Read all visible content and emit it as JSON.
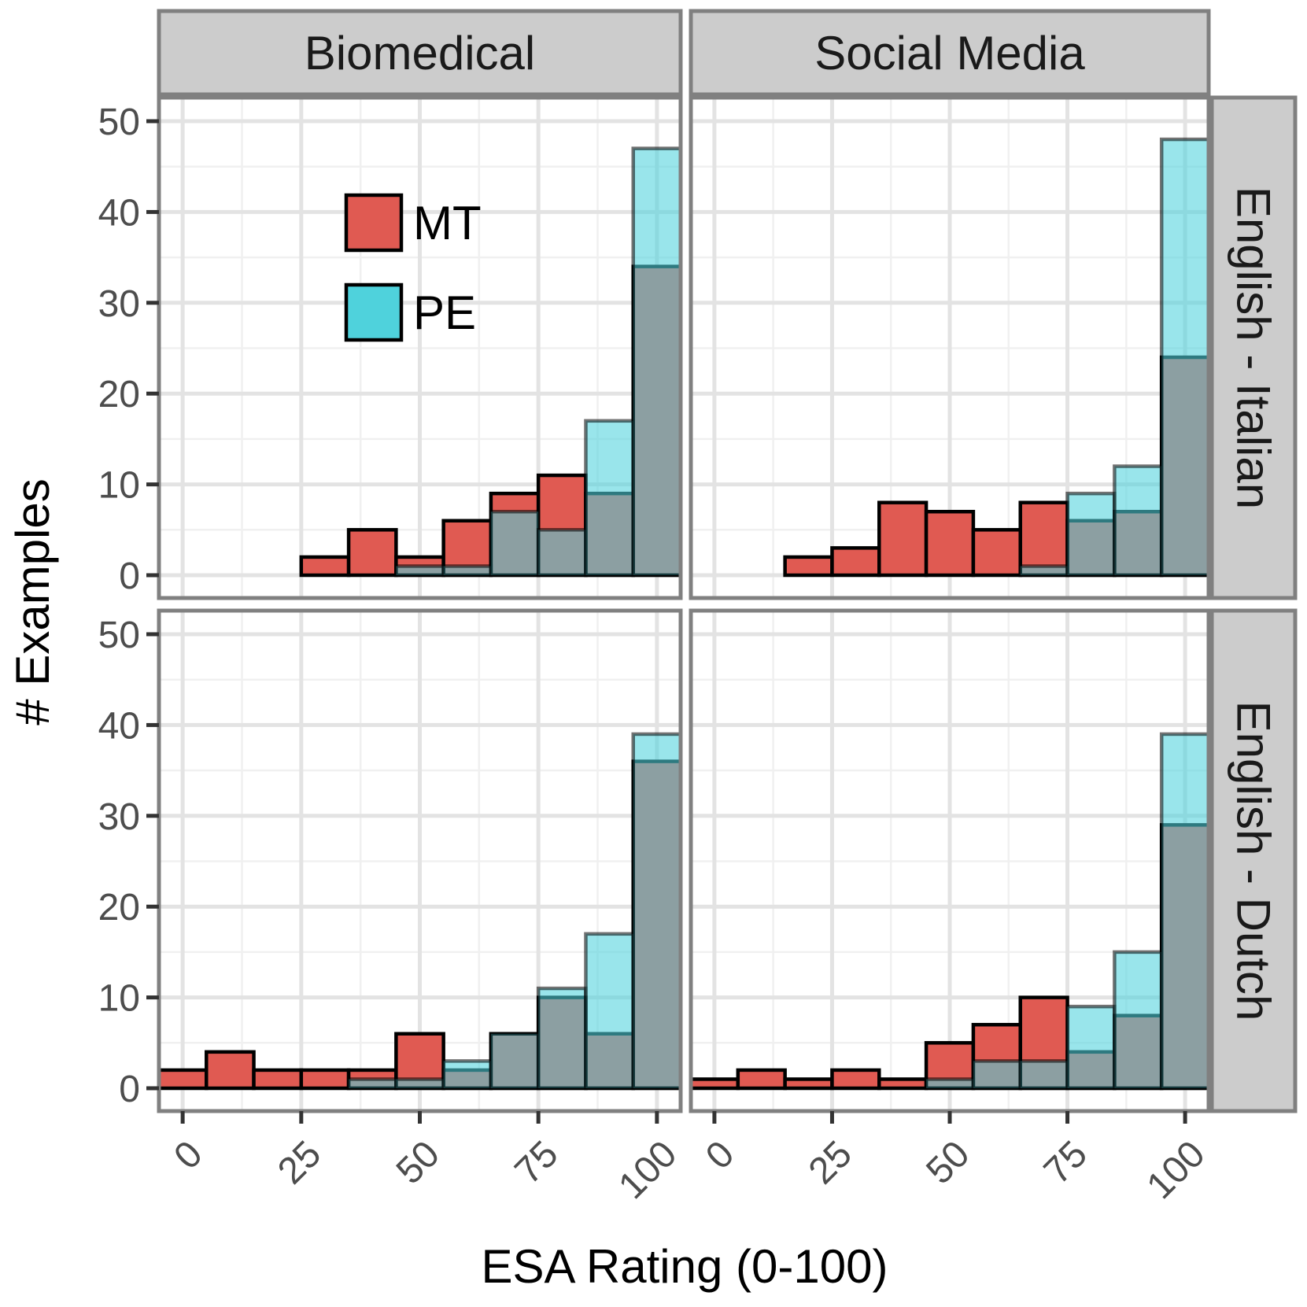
{
  "chart_data": {
    "type": "bar",
    "subtype": "faceted overlapping histogram",
    "xlabel": "ESA Rating (0-100)",
    "ylabel": "# Examples",
    "xlim": [
      -5,
      105
    ],
    "ylim": [
      0,
      50
    ],
    "x_ticks": [
      0,
      25,
      50,
      75,
      100
    ],
    "y_ticks": [
      0,
      10,
      20,
      30,
      40,
      50
    ],
    "bins": [
      0,
      10,
      20,
      30,
      40,
      50,
      60,
      70,
      80,
      90,
      100
    ],
    "bin_width": 10,
    "grid": true,
    "legend_placement": "inside top-left",
    "column_facets": [
      "Biomedical",
      "Social Media"
    ],
    "row_facets": [
      "English - Italian",
      "English - Dutch"
    ],
    "series": [
      {
        "name": "MT",
        "color": "#e05a52"
      },
      {
        "name": "PE",
        "color": "#4fd2dc"
      }
    ],
    "panels": [
      {
        "col": "Biomedical",
        "row": "English - Italian",
        "MT": [
          0,
          0,
          0,
          2,
          5,
          2,
          6,
          9,
          11,
          9,
          34
        ],
        "PE": [
          0,
          0,
          0,
          0,
          0,
          1,
          1,
          7,
          5,
          17,
          47
        ]
      },
      {
        "col": "Social Media",
        "row": "English - Italian",
        "MT": [
          0,
          0,
          2,
          3,
          8,
          7,
          5,
          8,
          6,
          7,
          24
        ],
        "PE": [
          0,
          0,
          0,
          0,
          0,
          0,
          0,
          1,
          9,
          12,
          48
        ]
      },
      {
        "col": "Biomedical",
        "row": "English - Dutch",
        "MT": [
          2,
          4,
          2,
          2,
          2,
          6,
          2,
          6,
          10,
          6,
          36
        ],
        "PE": [
          0,
          0,
          0,
          0,
          1,
          1,
          3,
          6,
          11,
          17,
          39
        ]
      },
      {
        "col": "Social Media",
        "row": "English - Dutch",
        "MT": [
          1,
          2,
          1,
          2,
          1,
          5,
          7,
          10,
          4,
          8,
          29
        ],
        "PE": [
          0,
          0,
          0,
          0,
          0,
          1,
          3,
          3,
          9,
          15,
          39
        ]
      }
    ]
  }
}
